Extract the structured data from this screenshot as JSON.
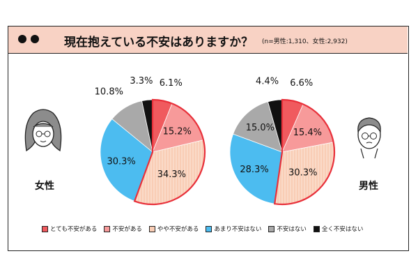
{
  "header": {
    "title": "現在抱えている不安はありますか？",
    "sample": "(n=男性:1,310、女性:2,932)"
  },
  "legend": [
    {
      "label": "とても不安がある",
      "color": "#f05a5e"
    },
    {
      "label": "不安がある",
      "color": "#f79a9a"
    },
    {
      "label": "やや不安がある",
      "color": "#f9cdb5"
    },
    {
      "label": "あまり不安はない",
      "color": "#4cbcf0"
    },
    {
      "label": "不安はない",
      "color": "#a9a9a9"
    },
    {
      "label": "全く不安はない",
      "color": "#111111"
    }
  ],
  "chart_data": [
    {
      "type": "pie",
      "group": "女性",
      "categories": [
        "とても不安がある",
        "不安がある",
        "やや不安がある",
        "あまり不安はない",
        "不安はない",
        "全く不安はない"
      ],
      "values": [
        6.1,
        15.2,
        34.3,
        30.3,
        10.8,
        3.3
      ],
      "labels": [
        "6.1%",
        "15.2%",
        "34.3%",
        "30.3%",
        "10.8%",
        "3.3%"
      ],
      "colors": [
        "#f05a5e",
        "#f79a9a",
        "#f9cdb5",
        "#4cbcf0",
        "#a9a9a9",
        "#111111"
      ],
      "highlight_outline": "#e8303a"
    },
    {
      "type": "pie",
      "group": "男性",
      "categories": [
        "とても不安がある",
        "不安がある",
        "やや不安がある",
        "あまり不安はない",
        "不安はない",
        "全く不安はない"
      ],
      "values": [
        6.6,
        15.4,
        30.3,
        28.3,
        15.0,
        4.4
      ],
      "labels": [
        "6.6%",
        "15.4%",
        "30.3%",
        "28.3%",
        "15.0%",
        "4.4%"
      ],
      "colors": [
        "#f05a5e",
        "#f79a9a",
        "#f9cdb5",
        "#4cbcf0",
        "#a9a9a9",
        "#111111"
      ],
      "highlight_outline": "#e8303a"
    }
  ]
}
